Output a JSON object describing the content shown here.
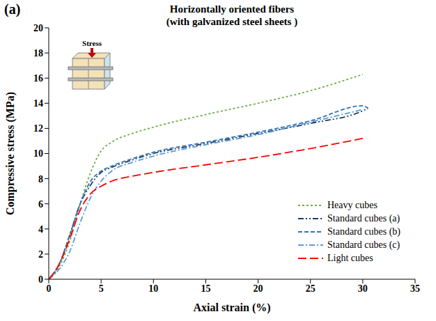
{
  "chart_data": {
    "type": "line",
    "panel_label": "(a)",
    "title": "Horizontally oriented fibers",
    "subtitle": "(with galvanized steel sheets )",
    "x_label": "Axial strain (%)",
    "y_label": "Compressive stress (MPa)",
    "annotations": [
      "Stress"
    ],
    "xlim": [
      0,
      35
    ],
    "xticks": [
      0,
      5,
      10,
      15,
      20,
      25,
      30,
      35
    ],
    "ylim": [
      0,
      20
    ],
    "yticks": [
      0,
      2,
      4,
      6,
      8,
      10,
      12,
      14,
      16,
      18,
      20
    ],
    "grid": false,
    "legend": "lower right",
    "series": [
      {
        "name": "Heavy cubes",
        "color": "#70ad47",
        "line_style": "dotted",
        "x": [
          0,
          1,
          2,
          3,
          4,
          5,
          6,
          8,
          10,
          15,
          20,
          25,
          30
        ],
        "values": [
          0,
          1,
          3,
          6,
          8.5,
          10.2,
          10.9,
          11.6,
          12.1,
          13.1,
          14,
          15,
          16.3
        ]
      },
      {
        "name": "Standard cubes (a)",
        "color": "#1f3864",
        "line_style": "dashdotdot",
        "x": [
          0,
          1,
          2,
          3,
          4,
          5,
          6,
          8,
          10,
          15,
          20,
          25,
          30,
          30.5
        ],
        "values": [
          0,
          1.2,
          3.5,
          6,
          7.5,
          8.5,
          8.9,
          9.5,
          10,
          10.8,
          11.6,
          12.4,
          13.4,
          13.6
        ]
      },
      {
        "name": "Standard cubes (b)",
        "color": "#2e75b6",
        "line_style": "dashed",
        "x": [
          0,
          1,
          2,
          3,
          4,
          5,
          6,
          8,
          10,
          15,
          20,
          25,
          30,
          30.5
        ],
        "values": [
          0,
          1.2,
          3.5,
          6,
          7.8,
          8.6,
          9,
          9.6,
          10.1,
          10.9,
          11.7,
          12.6,
          13.8,
          13.6
        ]
      },
      {
        "name": "Standard cubes (c)",
        "color": "#5b9bd5",
        "line_style": "dashdot",
        "x": [
          0,
          1,
          2,
          3,
          4,
          5,
          6,
          8,
          10,
          15,
          20,
          25,
          30
        ],
        "values": [
          0,
          0.8,
          2.2,
          4.5,
          6.5,
          7.8,
          8.6,
          9.3,
          9.8,
          10.7,
          11.5,
          12.5,
          13.5
        ]
      },
      {
        "name": "Light cubes",
        "color": "#ff0000",
        "line_style": "longdash",
        "x": [
          0,
          1,
          2,
          3,
          4,
          5,
          6,
          8,
          10,
          15,
          20,
          25,
          30
        ],
        "values": [
          0,
          1.2,
          3.2,
          5.5,
          6.8,
          7.4,
          7.8,
          8.2,
          8.5,
          9.1,
          9.7,
          10.4,
          11.2
        ]
      }
    ]
  }
}
